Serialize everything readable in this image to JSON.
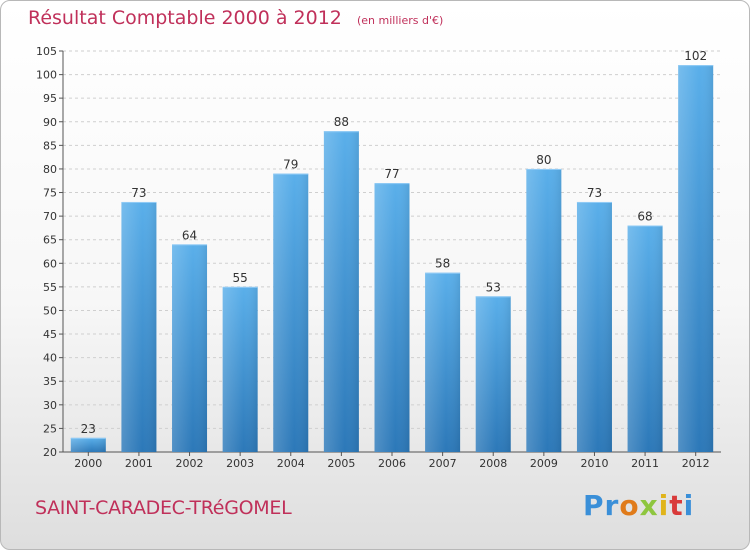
{
  "header": {
    "title": "Résultat Comptable 2000 à 2012",
    "subtitle": "(en milliers d'€)"
  },
  "footer": {
    "town": "SAINT-CARADEC-TRéGOMEL",
    "brand": "Proxiti",
    "brand_letters": [
      {
        "ch": "P",
        "color": "#3a8fd8"
      },
      {
        "ch": "r",
        "color": "#3a8fd8"
      },
      {
        "ch": "o",
        "color": "#e07b1a"
      },
      {
        "ch": "x",
        "color": "#8ec63f"
      },
      {
        "ch": "i",
        "color": "#e0b41a"
      },
      {
        "ch": "t",
        "color": "#d93a3a"
      },
      {
        "ch": "i",
        "color": "#3a8fd8"
      }
    ]
  },
  "chart_data": {
    "type": "bar",
    "title": "Résultat Comptable 2000 à 2012",
    "subtitle": "(en milliers d'€)",
    "xlabel": "",
    "ylabel": "",
    "categories": [
      "2000",
      "2001",
      "2002",
      "2003",
      "2004",
      "2005",
      "2006",
      "2007",
      "2008",
      "2009",
      "2010",
      "2011",
      "2012"
    ],
    "values": [
      23,
      73,
      64,
      55,
      79,
      88,
      77,
      58,
      53,
      80,
      73,
      68,
      102
    ],
    "ylim": [
      20,
      105
    ],
    "yticks": [
      20,
      25,
      30,
      35,
      40,
      45,
      50,
      55,
      60,
      65,
      70,
      75,
      80,
      85,
      90,
      95,
      100,
      105
    ],
    "grid": true,
    "bar_color": "#4a9fe0"
  }
}
